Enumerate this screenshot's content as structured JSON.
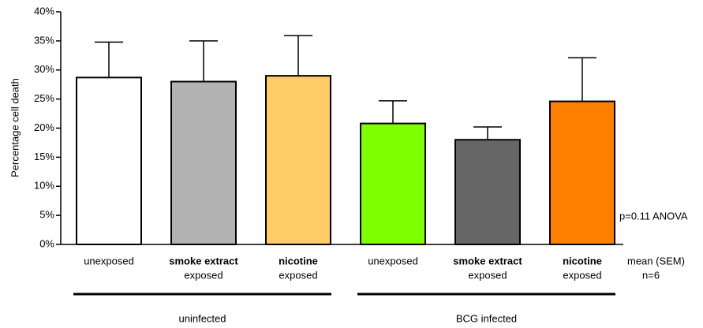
{
  "chart_data": {
    "type": "bar",
    "y_label": "Percentage cell death",
    "categories": [
      [
        "unexposed"
      ],
      [
        "smoke extract",
        "exposed"
      ],
      [
        "nicotine",
        "exposed"
      ],
      [
        "unexposed"
      ],
      [
        "smoke extract",
        "exposed"
      ],
      [
        "nicotine",
        "exposed"
      ]
    ],
    "bold_first_line": [
      false,
      true,
      true,
      false,
      true,
      true
    ],
    "values": [
      28.7,
      28.0,
      29.0,
      20.8,
      18.0,
      24.6
    ],
    "errors": [
      6.1,
      7.0,
      6.9,
      3.9,
      2.2,
      7.5
    ],
    "colors": [
      "#ffffff",
      "#b3b3b3",
      "#ffcc66",
      "#80ff00",
      "#666666",
      "#ff8000"
    ],
    "groups": [
      {
        "label": "uninfected",
        "from": 0,
        "to": 2
      },
      {
        "label": "BCG infected",
        "from": 3,
        "to": 5
      }
    ],
    "ylim": [
      0,
      40
    ],
    "yticks": [
      {
        "value": 0,
        "label": "0%"
      },
      {
        "value": 5,
        "label": "5%"
      },
      {
        "value": 10,
        "label": "10%"
      },
      {
        "value": 15,
        "label": "15%"
      },
      {
        "value": 20,
        "label": "20%"
      },
      {
        "value": 25,
        "label": "25%"
      },
      {
        "value": 30,
        "label": "30%"
      },
      {
        "value": 35,
        "label": "35%"
      },
      {
        "value": 40,
        "label": "40%"
      }
    ],
    "annotations": [
      "p=0.11 ANOVA",
      "mean (SEM)",
      "n=6"
    ]
  }
}
